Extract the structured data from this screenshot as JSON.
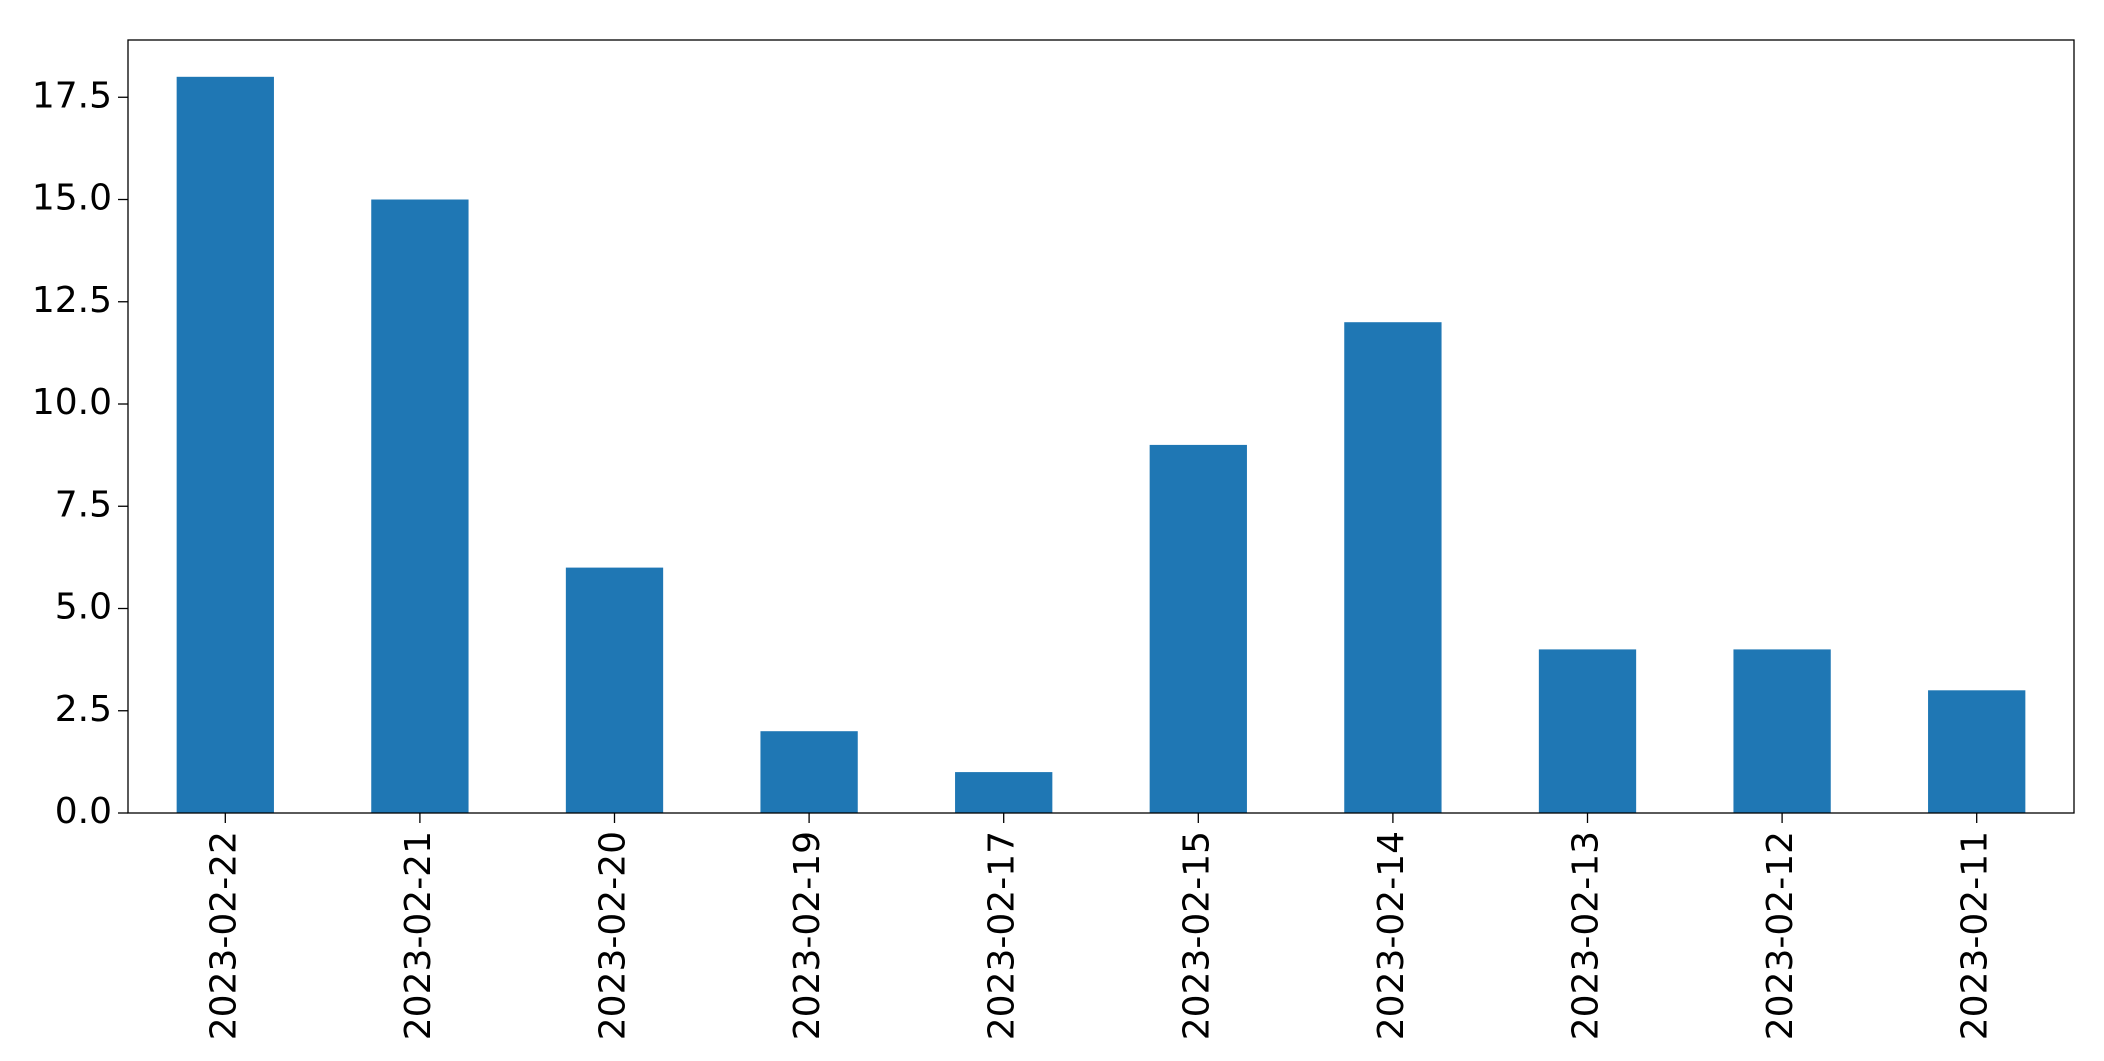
{
  "chart_data": {
    "type": "bar",
    "categories": [
      "2023-02-22",
      "2023-02-21",
      "2023-02-20",
      "2023-02-19",
      "2023-02-17",
      "2023-02-15",
      "2023-02-14",
      "2023-02-13",
      "2023-02-12",
      "2023-02-11"
    ],
    "values": [
      18,
      15,
      6,
      2,
      1,
      9,
      12,
      4,
      4,
      3
    ],
    "color": "#1f77b4",
    "ylim": [
      0,
      18.9
    ],
    "yticks": [
      {
        "value": 0,
        "label": "0.0"
      },
      2.5,
      {
        "value": 5,
        "label": "5.0"
      },
      7.5,
      {
        "value": 10,
        "label": "10.0"
      },
      12.5,
      {
        "value": 15,
        "label": "15.0"
      },
      17.5
    ],
    "grid": false
  }
}
